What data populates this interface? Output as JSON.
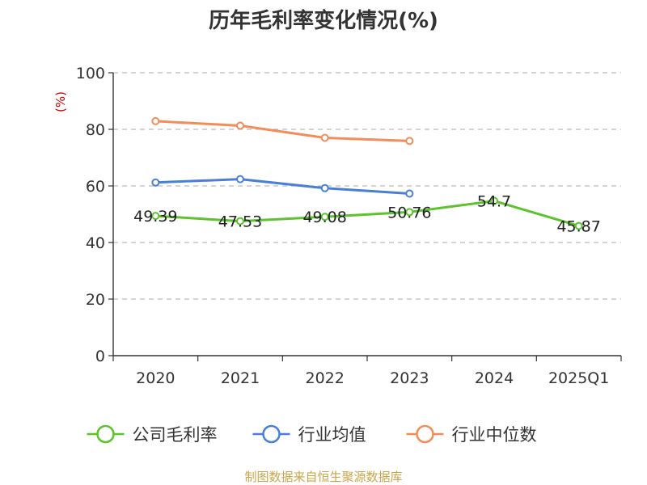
{
  "chart_data": {
    "type": "line",
    "title": "历年毛利率变化情况(%)",
    "ylabel": "(%)",
    "ylim": [
      0,
      100
    ],
    "yticks": [
      0,
      20,
      40,
      60,
      80,
      100
    ],
    "categories": [
      "2020",
      "2021",
      "2022",
      "2023",
      "2024",
      "2025Q1"
    ],
    "grid": true,
    "legend_position": "bottom",
    "series": [
      {
        "name": "公司毛利率",
        "color": "#5cc32e",
        "values": [
          49.39,
          47.53,
          49.08,
          50.76,
          54.7,
          45.87
        ],
        "labels": [
          "49.39",
          "47.53",
          "49.08",
          "50.76",
          "54.7",
          "45.87"
        ]
      },
      {
        "name": "行业均值",
        "color": "#4a7fd8",
        "values": [
          61.2,
          62.4,
          59.2,
          57.3,
          null,
          null
        ]
      },
      {
        "name": "行业中位数",
        "color": "#f28d5a",
        "values": [
          82.9,
          81.3,
          77.0,
          75.9,
          null,
          null
        ]
      }
    ]
  },
  "source": "制图数据来自恒生聚源数据库"
}
